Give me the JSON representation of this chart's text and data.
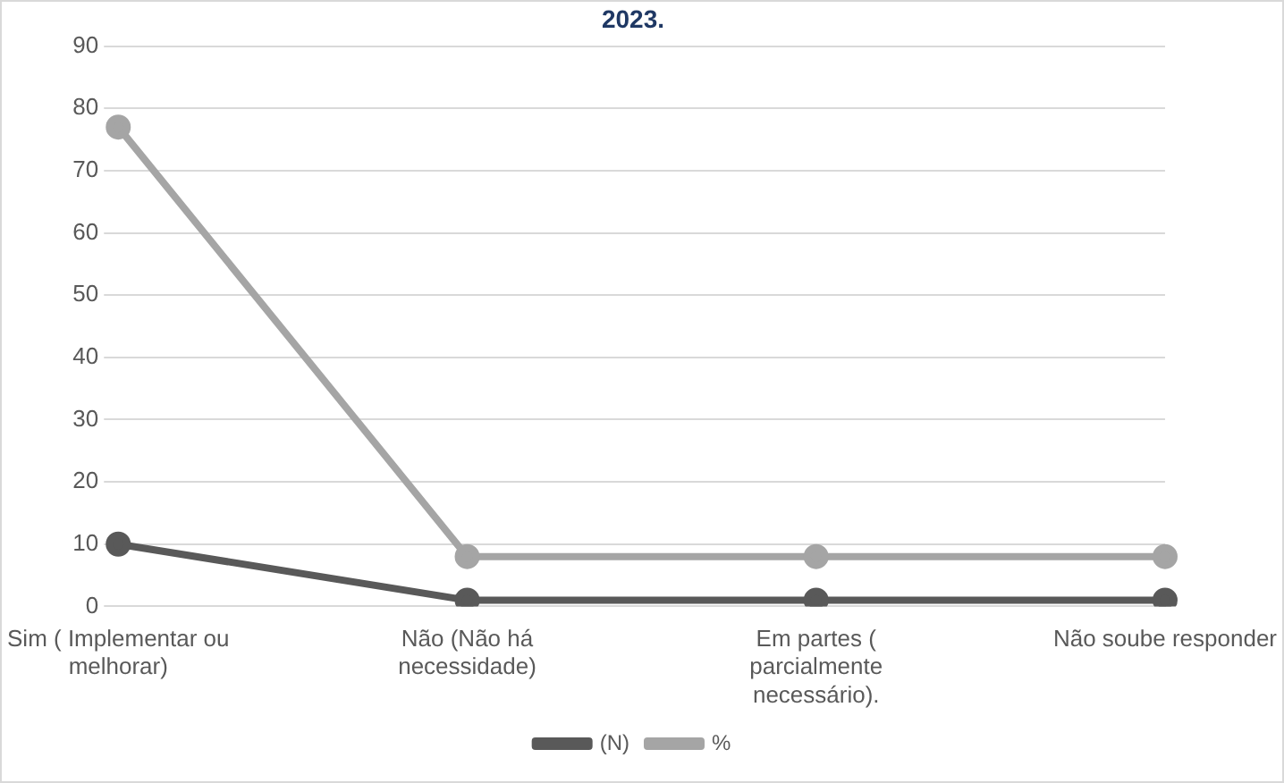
{
  "chart_data": {
    "type": "line",
    "title": "2023.",
    "categories": [
      "Sim ( Implementar ou melhorar)",
      "Não (Não há necessidade)",
      "Em partes ( parcialmente necessário).",
      "Não soube responder"
    ],
    "series": [
      {
        "name": "(N)",
        "color": "#595959",
        "values": [
          10,
          1,
          1,
          1
        ]
      },
      {
        "name": "%",
        "color": "#a5a5a5",
        "values": [
          77,
          8,
          8,
          8
        ]
      }
    ],
    "ylim": [
      0,
      90
    ],
    "yticks": [
      0,
      10,
      20,
      30,
      40,
      50,
      60,
      70,
      80,
      90
    ],
    "grid": "y",
    "legend": "bottom",
    "marker": "circle",
    "line_style": "solid"
  }
}
